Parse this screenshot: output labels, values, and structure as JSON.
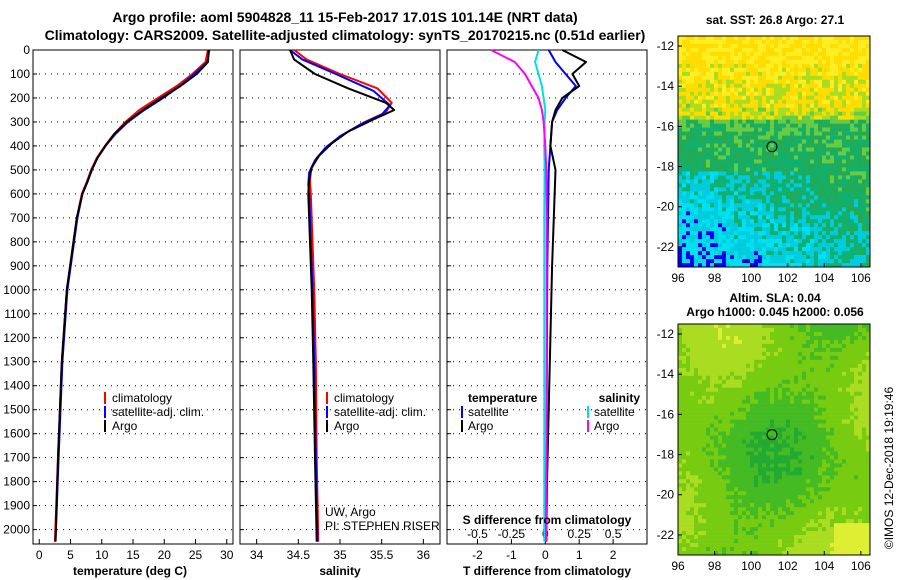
{
  "title_line1": "Argo profile: aoml 5904828_11 15-Feb-2017 17.01S 101.14E (NRT data)",
  "title_line2": "Climatology: CARS2009. Satellite-adjusted climatology: synTS_20170215.nc (0.51d earlier)",
  "credit": "©IMOS 12-Dec-2018 19:19:46",
  "colors": {
    "climatology": "#ff0000",
    "satellite": "#0000ff",
    "argo": "#000000",
    "sal_satellite": "#00e0e0",
    "sal_argo": "#ff00ff"
  },
  "chart_data": [
    {
      "type": "line",
      "panel": "temperature",
      "xlabel": "temperature (deg C)",
      "xlim": [
        -1,
        31
      ],
      "xticks": [
        0,
        5,
        10,
        15,
        20,
        25,
        30
      ],
      "ylim": [
        2060,
        0
      ],
      "yticks": [
        0,
        100,
        200,
        300,
        400,
        500,
        600,
        700,
        800,
        900,
        1000,
        1100,
        1200,
        1300,
        1400,
        1500,
        1600,
        1700,
        1800,
        1900,
        2000
      ],
      "legend": [
        "climatology",
        "satellite-adj. clim.",
        "Argo"
      ],
      "series": [
        {
          "name": "climatology",
          "color_key": "climatology",
          "x": [
            27.0,
            26.6,
            24.5,
            22.0,
            19.0,
            16.0,
            13.8,
            12.0,
            10.5,
            9.2,
            8.3,
            7.6,
            6.8,
            6.0,
            5.2,
            4.4,
            3.6,
            3.0,
            2.5
          ],
          "y": [
            0,
            50,
            100,
            150,
            200,
            250,
            300,
            350,
            400,
            450,
            500,
            550,
            600,
            700,
            850,
            1000,
            1300,
            1700,
            2050
          ]
        },
        {
          "name": "satellite-adj. clim.",
          "color_key": "satellite",
          "x": [
            27.2,
            26.9,
            24.8,
            22.5,
            19.8,
            16.8,
            14.2,
            12.2,
            10.6,
            9.3,
            8.4,
            7.7,
            6.9,
            6.1,
            5.3,
            4.5,
            3.7,
            3.1,
            2.6
          ],
          "y": [
            0,
            50,
            100,
            150,
            200,
            250,
            300,
            350,
            400,
            450,
            500,
            550,
            600,
            700,
            850,
            1000,
            1300,
            1700,
            2050
          ]
        },
        {
          "name": "Argo",
          "color_key": "argo",
          "x": [
            27.1,
            27.0,
            25.2,
            22.6,
            19.5,
            16.6,
            14.0,
            12.0,
            10.6,
            9.3,
            8.4,
            7.7,
            6.9,
            6.0,
            5.2,
            4.4,
            3.6,
            3.0,
            2.6
          ],
          "y": [
            0,
            50,
            100,
            150,
            200,
            250,
            300,
            350,
            400,
            450,
            500,
            550,
            600,
            700,
            850,
            1000,
            1300,
            1700,
            2050
          ]
        }
      ]
    },
    {
      "type": "line",
      "panel": "salinity",
      "xlabel": "salinity",
      "xlim": [
        33.8,
        36.2
      ],
      "xticks": [
        34,
        34.5,
        35,
        35.5,
        36
      ],
      "ylim": [
        2060,
        0
      ],
      "legend": [
        "climatology",
        "satellite-adj. clim.",
        "Argo"
      ],
      "annotation": [
        "UW, Argo",
        "PI: STEPHEN RISER"
      ],
      "series": [
        {
          "name": "climatology",
          "color_key": "climatology",
          "x": [
            34.45,
            34.6,
            35.0,
            35.45,
            35.62,
            35.55,
            35.3,
            35.05,
            34.85,
            34.72,
            34.65,
            34.64,
            34.65,
            34.67,
            34.69,
            34.71,
            34.72,
            34.74
          ],
          "y": [
            0,
            40,
            100,
            160,
            220,
            260,
            300,
            350,
            400,
            450,
            500,
            550,
            600,
            800,
            1000,
            1300,
            1700,
            2050
          ]
        },
        {
          "name": "satellite-adj. clim.",
          "color_key": "satellite",
          "x": [
            34.4,
            34.55,
            34.95,
            35.4,
            35.6,
            35.5,
            35.25,
            35.0,
            34.82,
            34.7,
            34.63,
            34.62,
            34.63,
            34.65,
            34.67,
            34.69,
            34.71,
            34.73
          ],
          "y": [
            0,
            40,
            100,
            170,
            230,
            270,
            310,
            360,
            410,
            460,
            510,
            560,
            610,
            810,
            1010,
            1310,
            1710,
            2050
          ]
        },
        {
          "name": "Argo",
          "color_key": "argo",
          "x": [
            34.4,
            34.45,
            34.7,
            35.1,
            35.55,
            35.65,
            35.4,
            35.1,
            34.9,
            34.75,
            34.66,
            34.63,
            34.62,
            34.64,
            34.66,
            34.68,
            34.7,
            34.72
          ],
          "y": [
            0,
            40,
            100,
            160,
            220,
            250,
            290,
            340,
            390,
            440,
            490,
            540,
            600,
            800,
            1000,
            1300,
            1700,
            2050
          ]
        }
      ]
    },
    {
      "type": "line",
      "panel": "difference",
      "xlabel": "T difference from climatology",
      "xlabel_top": "S difference from climatology",
      "xlim": [
        -2.9,
        3.0
      ],
      "xticks": [
        -2,
        -1,
        0,
        1,
        2
      ],
      "xticks_top": [
        -0.5,
        -0.25,
        0,
        0.25,
        0.5
      ],
      "xticks_top_labels": [
        "-0.5",
        "-0.25",
        "0",
        "0.25",
        "0.5"
      ],
      "ylim": [
        2060,
        0
      ],
      "legend_left_title": "temperature",
      "legend_left": [
        "satellite",
        "Argo"
      ],
      "legend_right_title": "salinity",
      "legend_right": [
        "satellite",
        "Argo"
      ],
      "series": [
        {
          "name": "T satellite",
          "color_key": "satellite",
          "x": [
            0.1,
            0.3,
            0.6,
            0.9,
            0.6,
            0.35,
            0.2,
            0.15,
            0.1,
            0.08,
            0.06,
            0.05,
            0.04,
            0.03,
            0.02
          ],
          "y": [
            0,
            50,
            100,
            150,
            200,
            250,
            300,
            400,
            500,
            700,
            900,
            1200,
            1500,
            1800,
            2050
          ]
        },
        {
          "name": "T Argo",
          "color_key": "argo",
          "x": [
            0.5,
            1.2,
            0.8,
            1.0,
            0.5,
            0.3,
            0.2,
            0.15,
            0.3,
            0.25,
            0.2,
            0.15,
            0.1,
            0.05,
            0.03
          ],
          "y": [
            0,
            50,
            100,
            150,
            200,
            250,
            300,
            400,
            500,
            700,
            900,
            1200,
            1500,
            1800,
            2050
          ]
        },
        {
          "name": "S satellite",
          "color_key": "sal_satellite",
          "x": [
            -0.2,
            -0.3,
            -0.2,
            -0.1,
            -0.05,
            0.0,
            -0.02,
            -0.03,
            -0.02,
            -0.03,
            -0.03,
            -0.03,
            -0.03,
            -0.03,
            -0.03
          ],
          "y": [
            0,
            50,
            100,
            150,
            200,
            250,
            300,
            400,
            500,
            700,
            900,
            1200,
            1500,
            1800,
            2050
          ]
        },
        {
          "name": "S Argo",
          "color_key": "sal_argo",
          "x": [
            -1.6,
            -0.9,
            -0.6,
            -0.4,
            -0.2,
            -0.1,
            -0.05,
            0.0,
            0.03,
            0.04,
            0.04,
            0.04,
            0.04,
            0.03,
            0.03
          ],
          "y": [
            0,
            50,
            100,
            150,
            200,
            250,
            300,
            400,
            500,
            700,
            900,
            1200,
            1500,
            1800,
            2050
          ]
        }
      ]
    },
    {
      "type": "heatmap",
      "panel": "sst-map",
      "title": "sat. SST: 26.8 Argo: 27.1",
      "xticks": [
        96,
        98,
        100,
        102,
        104,
        106
      ],
      "yticks": [
        -12,
        -14,
        -16,
        -18,
        -20,
        -22
      ],
      "xlim": [
        96,
        106.5
      ],
      "ylim": [
        -23,
        -11.5
      ],
      "marker": {
        "lon": 101.14,
        "lat": -17.01
      },
      "palette": [
        "#0000cc",
        "#0000ff",
        "#00e0f0",
        "#00ccdd",
        "#10b070",
        "#22aa55",
        "#66cc44",
        "#aadd22",
        "#ffdd00",
        "#ffee22"
      ]
    },
    {
      "type": "heatmap",
      "panel": "sla-map",
      "title": "Altim. SLA: 0.04",
      "subtitle": "Argo h1000: 0.045 h2000: 0.056",
      "xticks": [
        96,
        98,
        100,
        102,
        104,
        106
      ],
      "yticks": [
        -12,
        -14,
        -16,
        -18,
        -20,
        -22
      ],
      "xlim": [
        96,
        106.5
      ],
      "ylim": [
        -23,
        -11.5
      ],
      "marker": {
        "lon": 101.14,
        "lat": -17.01
      },
      "palette": [
        "#22aa33",
        "#44bb22",
        "#77cc11",
        "#aadd22",
        "#ddee33"
      ]
    }
  ]
}
